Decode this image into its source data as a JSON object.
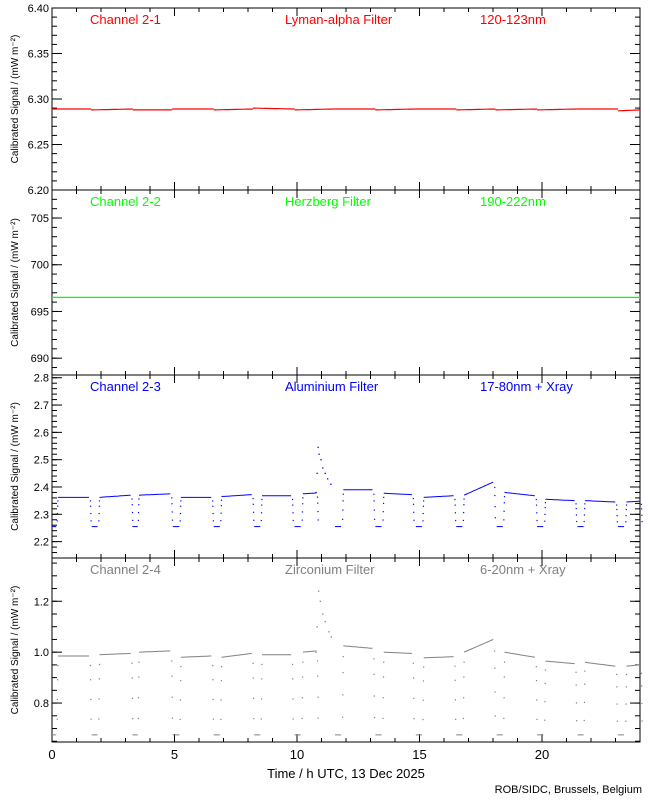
{
  "shared": {
    "xlabel": "Time / h UTC, 13 Dec 2025",
    "xlim": [
      0,
      24
    ],
    "xticks": [
      0,
      5,
      10,
      15,
      20
    ],
    "credit": "ROB/SIDC, Brussels, Belgium",
    "ylabel": "Calibrated Signal  /  (mW m⁻²)"
  },
  "chart_data": [
    {
      "type": "line",
      "channel": "Channel 2-1",
      "filter": "Lyman-alpha Filter",
      "band": "120-123nm",
      "color": "#ff0000",
      "ylim": [
        6.2,
        6.4
      ],
      "yticks": [
        6.2,
        6.25,
        6.3,
        6.35,
        6.4
      ],
      "yminor": 0.01,
      "ydec": 2,
      "highs": [
        [
          0,
          1.6,
          6.289,
          6.289
        ],
        [
          1.6,
          3.3,
          6.288,
          6.289
        ],
        [
          3.3,
          4.9,
          6.288,
          6.288
        ],
        [
          4.9,
          6.6,
          6.289,
          6.289
        ],
        [
          6.6,
          8.2,
          6.288,
          6.289
        ],
        [
          8.2,
          9.9,
          6.29,
          6.289
        ],
        [
          9.9,
          11.5,
          6.288,
          6.289
        ],
        [
          11.5,
          13.2,
          6.289,
          6.289
        ],
        [
          13.2,
          14.8,
          6.288,
          6.289
        ],
        [
          14.8,
          16.5,
          6.289,
          6.289
        ],
        [
          16.5,
          18.1,
          6.288,
          6.289
        ],
        [
          18.1,
          19.8,
          6.288,
          6.289
        ],
        [
          19.8,
          21.4,
          6.288,
          6.289
        ],
        [
          21.4,
          23.1,
          6.289,
          6.289
        ],
        [
          23.1,
          24,
          6.287,
          6.288
        ]
      ],
      "lows": [],
      "low_value": null,
      "flare": []
    },
    {
      "type": "line",
      "channel": "Channel 2-2",
      "filter": "Herzberg Filter",
      "band": "190-222nm",
      "color": "#00ff00",
      "ylim": [
        688.2,
        708
      ],
      "yticks": [
        690,
        695,
        700,
        705
      ],
      "yminor": 1,
      "ydec": 0,
      "highs": [
        [
          0,
          24,
          696.5,
          696.5
        ]
      ],
      "lows": [],
      "low_value": null,
      "flare": []
    },
    {
      "type": "scatter",
      "channel": "Channel 2-3",
      "filter": "Aluminium Filter",
      "band": "17-80nm + Xray",
      "color": "#0000ff",
      "ylim": [
        2.14,
        2.81
      ],
      "yticks": [
        2.2,
        2.3,
        2.4,
        2.5,
        2.6,
        2.7,
        2.8
      ],
      "yminor": 0.02,
      "ydec": 1,
      "highs": [
        [
          0.24,
          1.51,
          2.362,
          2.362
        ],
        [
          1.94,
          3.21,
          2.362,
          2.37
        ],
        [
          3.55,
          4.83,
          2.37,
          2.375
        ],
        [
          5.26,
          6.5,
          2.362,
          2.362
        ],
        [
          6.92,
          8.15,
          2.365,
          2.372
        ],
        [
          8.57,
          9.76,
          2.368,
          2.368
        ],
        [
          10.24,
          10.78,
          2.375,
          2.378
        ],
        [
          11.89,
          13.08,
          2.39,
          2.39
        ],
        [
          13.54,
          14.69,
          2.377,
          2.372
        ],
        [
          15.17,
          16.39,
          2.362,
          2.368
        ],
        [
          16.82,
          18.01,
          2.37,
          2.418
        ],
        [
          18.47,
          19.71,
          2.38,
          2.368
        ],
        [
          20.14,
          21.33,
          2.355,
          2.35
        ],
        [
          21.75,
          22.99,
          2.35,
          2.345
        ],
        [
          23.45,
          24,
          2.345,
          2.348
        ]
      ],
      "lows": [
        [
          0,
          0.17
        ],
        [
          1.62,
          1.86
        ],
        [
          3.28,
          3.5
        ],
        [
          4.93,
          5.2
        ],
        [
          6.6,
          6.85
        ],
        [
          8.25,
          8.5
        ],
        [
          9.9,
          10.15
        ],
        [
          11.55,
          11.8
        ],
        [
          13.2,
          13.45
        ],
        [
          14.85,
          15.1
        ],
        [
          16.5,
          16.75
        ],
        [
          18.15,
          18.4
        ],
        [
          19.8,
          20.05
        ],
        [
          21.45,
          21.7
        ],
        [
          23.1,
          23.35
        ]
      ],
      "low_value": 2.255,
      "flare": [
        [
          10.78,
          2.38
        ],
        [
          10.82,
          2.45
        ],
        [
          10.86,
          2.545
        ],
        [
          10.9,
          2.52
        ],
        [
          10.98,
          2.5
        ],
        [
          11.05,
          2.47
        ],
        [
          11.15,
          2.45
        ],
        [
          11.25,
          2.43
        ],
        [
          11.38,
          2.41
        ]
      ]
    },
    {
      "type": "scatter",
      "channel": "Channel 2-4",
      "filter": "Zirconium Filter",
      "band": "6-20nm + Xray",
      "color": "#808080",
      "ylim": [
        0.647,
        1.37
      ],
      "yticks": [
        0.8,
        1.0,
        1.2
      ],
      "yminor": 0.05,
      "ydec": 1,
      "highs": [
        [
          0.24,
          1.51,
          0.985,
          0.985
        ],
        [
          1.94,
          3.21,
          0.99,
          0.995
        ],
        [
          3.55,
          4.83,
          1.0,
          1.005
        ],
        [
          5.26,
          6.5,
          0.98,
          0.985
        ],
        [
          6.92,
          8.15,
          0.98,
          0.995
        ],
        [
          8.57,
          9.76,
          0.99,
          0.99
        ],
        [
          10.24,
          10.78,
          1.0,
          1.005
        ],
        [
          11.89,
          13.08,
          1.025,
          1.015
        ],
        [
          13.54,
          14.69,
          1.0,
          0.995
        ],
        [
          15.17,
          16.39,
          0.978,
          0.982
        ],
        [
          16.82,
          18.01,
          1.0,
          1.05
        ],
        [
          18.47,
          19.71,
          1.0,
          0.98
        ],
        [
          20.14,
          21.33,
          0.965,
          0.955
        ],
        [
          21.75,
          22.99,
          0.96,
          0.945
        ],
        [
          23.45,
          24,
          0.945,
          0.95
        ]
      ],
      "lows": [
        [
          0,
          0.17
        ],
        [
          1.62,
          1.86
        ],
        [
          3.28,
          3.5
        ],
        [
          4.93,
          5.2
        ],
        [
          6.6,
          6.85
        ],
        [
          8.25,
          8.5
        ],
        [
          9.9,
          10.15
        ],
        [
          11.55,
          11.8
        ],
        [
          13.2,
          13.45
        ],
        [
          14.85,
          15.1
        ],
        [
          16.5,
          16.75
        ],
        [
          18.15,
          18.4
        ],
        [
          19.8,
          20.05
        ],
        [
          21.45,
          21.7
        ],
        [
          23.1,
          23.35
        ]
      ],
      "low_value": 0.675,
      "flare": [
        [
          10.78,
          1.0
        ],
        [
          10.82,
          1.1
        ],
        [
          10.88,
          1.24
        ],
        [
          10.95,
          1.2
        ],
        [
          11.05,
          1.15
        ],
        [
          11.15,
          1.12
        ],
        [
          11.3,
          1.08
        ],
        [
          11.4,
          1.06
        ]
      ]
    }
  ]
}
